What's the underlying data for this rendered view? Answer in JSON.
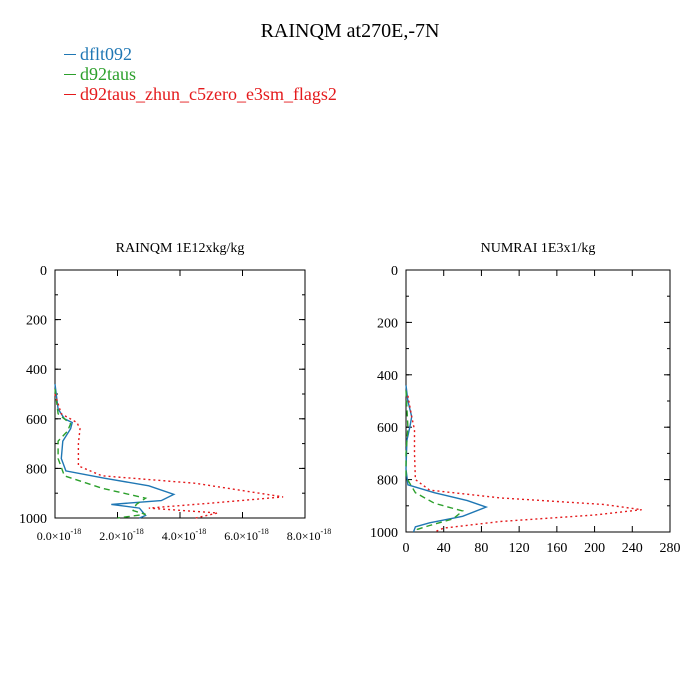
{
  "title": "RAINQM at270E,-7N",
  "legend": [
    {
      "label": "dflt092",
      "color": "#1f77b4"
    },
    {
      "label": "d92taus",
      "color": "#2ca02c"
    },
    {
      "label": "d92taus_zhun_c5zero_e3sm_flags2",
      "color": "#e41a1c"
    }
  ],
  "chart_data": [
    {
      "type": "line",
      "title": "RAINQM  1E12xkg/kg",
      "x_range": [
        0,
        8e-18
      ],
      "y_range": [
        1000,
        0
      ],
      "y_ticks": [
        0,
        200,
        400,
        600,
        800,
        1000
      ],
      "x_tick_labels": [
        "0.0×10",
        "2.0×10",
        "4.0×10",
        "6.0×10",
        "8.0×10"
      ],
      "x_tick_exponent": "-18",
      "series": [
        {
          "name": "dflt092",
          "style": "solid",
          "points": [
            [
              0,
              460
            ],
            [
              1e-19,
              560
            ],
            [
              3e-19,
              600
            ],
            [
              5.5e-19,
              615
            ],
            [
              5e-19,
              640
            ],
            [
              2.5e-19,
              690
            ],
            [
              2e-19,
              760
            ],
            [
              3.5e-19,
              810
            ],
            [
              1.6e-18,
              840
            ],
            [
              3e-18,
              870
            ],
            [
              3.8e-18,
              905
            ],
            [
              3.4e-18,
              930
            ],
            [
              1.8e-18,
              945
            ],
            [
              2.7e-18,
              960
            ],
            [
              2.9e-18,
              990
            ],
            [
              2.7e-18,
              1000
            ]
          ]
        },
        {
          "name": "d92taus",
          "style": "dashed",
          "points": [
            [
              0,
              480
            ],
            [
              1e-19,
              580
            ],
            [
              5e-19,
              620
            ],
            [
              4e-19,
              650
            ],
            [
              1e-19,
              690
            ],
            [
              1e-19,
              760
            ],
            [
              3e-19,
              830
            ],
            [
              1.5e-18,
              880
            ],
            [
              2.9e-18,
              920
            ],
            [
              2.6e-18,
              945
            ],
            [
              2.5e-18,
              970
            ],
            [
              2.9e-18,
              985
            ],
            [
              2e-18,
              1000
            ]
          ]
        },
        {
          "name": "d92taus_zhun_c5zero_e3sm_flags2",
          "style": "dotted",
          "points": [
            [
              0,
              500
            ],
            [
              2e-19,
              580
            ],
            [
              7e-19,
              615
            ],
            [
              8e-19,
              640
            ],
            [
              7.5e-19,
              700
            ],
            [
              7.5e-19,
              790
            ],
            [
              1.5e-18,
              830
            ],
            [
              4.5e-18,
              860
            ],
            [
              7.3e-18,
              915
            ],
            [
              5e-18,
              940
            ],
            [
              3e-18,
              960
            ],
            [
              5.2e-18,
              980
            ],
            [
              4.5e-18,
              1000
            ]
          ]
        }
      ]
    },
    {
      "type": "line",
      "title": "NUMRAI  1E3x1/kg",
      "x_range": [
        0,
        280
      ],
      "y_range": [
        1000,
        0
      ],
      "y_ticks": [
        0,
        200,
        400,
        600,
        800,
        1000
      ],
      "x_ticks": [
        0,
        40,
        80,
        120,
        160,
        200,
        240,
        280
      ],
      "series": [
        {
          "name": "dflt092",
          "style": "solid",
          "points": [
            [
              0,
              440
            ],
            [
              2,
              500
            ],
            [
              6,
              560
            ],
            [
              4,
              600
            ],
            [
              1,
              650
            ],
            [
              0,
              760
            ],
            [
              2,
              820
            ],
            [
              30,
              850
            ],
            [
              65,
              880
            ],
            [
              85,
              905
            ],
            [
              60,
              940
            ],
            [
              25,
              965
            ],
            [
              10,
              980
            ],
            [
              8,
              1000
            ]
          ]
        },
        {
          "name": "d92taus",
          "style": "dashed",
          "points": [
            [
              0,
              460
            ],
            [
              2,
              600
            ],
            [
              0,
              700
            ],
            [
              0,
              790
            ],
            [
              10,
              850
            ],
            [
              30,
              890
            ],
            [
              60,
              920
            ],
            [
              50,
              950
            ],
            [
              25,
              975
            ],
            [
              12,
              990
            ],
            [
              10,
              1000
            ]
          ]
        },
        {
          "name": "d92taus_zhun_c5zero_e3sm_flags2",
          "style": "dotted",
          "points": [
            [
              2,
              480
            ],
            [
              6,
              560
            ],
            [
              9,
              610
            ],
            [
              9,
              700
            ],
            [
              10,
              800
            ],
            [
              25,
              840
            ],
            [
              100,
              870
            ],
            [
              210,
              895
            ],
            [
              250,
              915
            ],
            [
              200,
              935
            ],
            [
              100,
              960
            ],
            [
              40,
              985
            ],
            [
              30,
              1000
            ]
          ]
        }
      ]
    }
  ]
}
